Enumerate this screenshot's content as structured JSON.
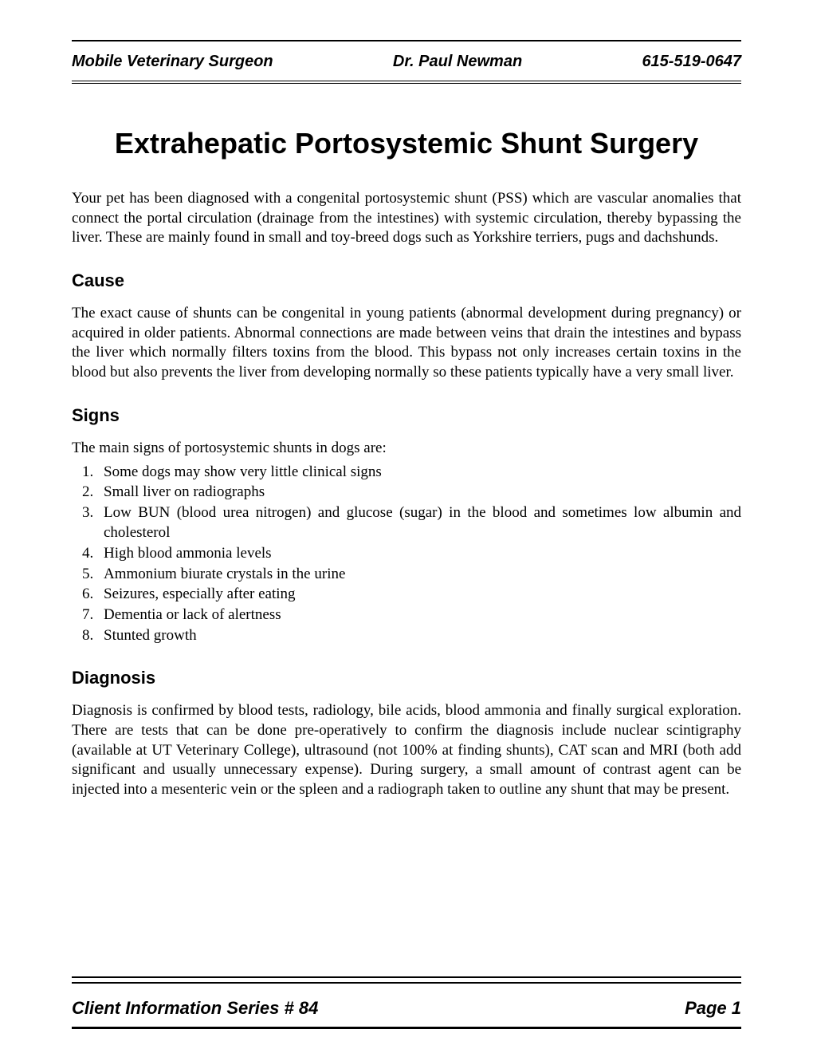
{
  "header": {
    "left": "Mobile Veterinary Surgeon",
    "center": "Dr. Paul Newman",
    "right": "615-519-0647"
  },
  "title": "Extrahepatic Portosystemic Shunt Surgery",
  "intro": "Your pet has been diagnosed with a congenital portosystemic shunt (PSS) which are vascular anomalies that connect the portal circulation (drainage from the intestines) with systemic circulation, thereby bypassing the liver. These are mainly found in small and toy-breed dogs such as Yorkshire terriers, pugs and dachshunds.",
  "sections": {
    "cause": {
      "heading": "Cause",
      "body": "The exact cause of shunts can be congenital in young patients (abnormal development during pregnancy) or acquired in older patients. Abnormal connections are made between veins that drain the intestines and bypass the liver which normally filters toxins from the blood. This bypass not only increases certain toxins in the blood but also prevents the liver from developing normally so these patients typically have a very small liver."
    },
    "signs": {
      "heading": "Signs",
      "intro": "The main signs of portosystemic shunts in dogs are:",
      "items": [
        "Some dogs may show very little clinical signs",
        "Small liver on radiographs",
        "Low BUN (blood urea nitrogen) and glucose (sugar) in the blood and sometimes low albumin and cholesterol",
        "High blood ammonia levels",
        "Ammonium biurate crystals in the urine",
        "Seizures, especially after eating",
        "Dementia or lack of alertness",
        "Stunted growth"
      ]
    },
    "diagnosis": {
      "heading": "Diagnosis",
      "body": "Diagnosis is confirmed by blood tests, radiology, bile acids, blood ammonia and finally surgical exploration. There are tests that can be done pre-operatively to confirm the diagnosis include nuclear scintigraphy (available at UT Veterinary College), ultrasound (not 100% at finding shunts), CAT scan and MRI (both add significant and usually unnecessary expense). During surgery, a small amount of contrast agent can be injected into a mesenteric vein or the spleen and a radiograph taken to outline any shunt that may be present."
    }
  },
  "footer": {
    "left": "Client Information Series # 84",
    "right": "Page 1"
  },
  "colors": {
    "text": "#000000",
    "background": "#ffffff",
    "rule": "#000000"
  },
  "typography": {
    "body_font": "Times New Roman",
    "heading_font": "Arial",
    "title_fontsize": 36,
    "heading_fontsize": 22,
    "body_fontsize": 19,
    "header_fontsize": 20,
    "footer_fontsize": 22
  }
}
